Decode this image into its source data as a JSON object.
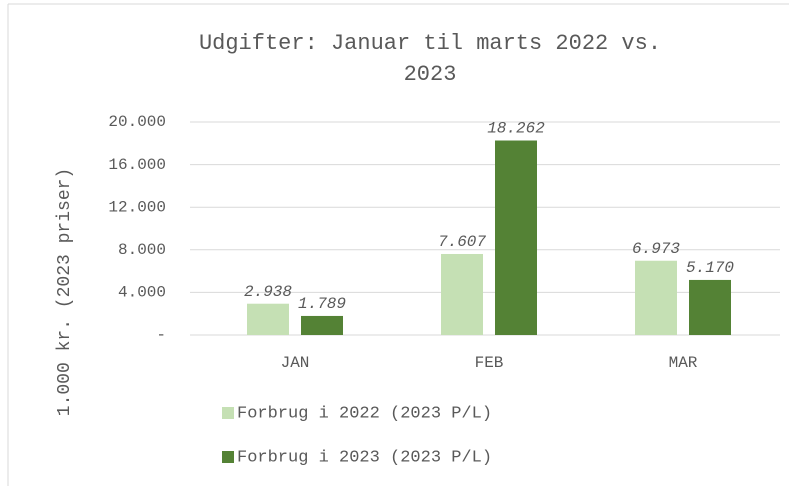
{
  "chart_data": {
    "type": "bar",
    "title": "Udgifter: Januar til marts 2022 vs. 2023",
    "y_label": "1.000 kr. (2023 priser)",
    "categories": [
      "JAN",
      "FEB",
      "MAR"
    ],
    "series": [
      {
        "name": "Forbrug i 2022 (2023 P/L)",
        "color": "#c5e0b4",
        "values": [
          2938,
          7607,
          6973
        ],
        "value_labels": [
          "2.938",
          "7.607",
          "6.973"
        ]
      },
      {
        "name": "Forbrug i 2023 (2023 P/L)",
        "color": "#548235",
        "values": [
          1789,
          18262,
          5170
        ],
        "value_labels": [
          "1.789",
          "18.262",
          "5.170"
        ]
      }
    ],
    "ylim": [
      0,
      20000
    ],
    "yticks": [
      {
        "value": 0,
        "label": "-"
      },
      {
        "value": 4000,
        "label": "4.000"
      },
      {
        "value": 8000,
        "label": "8.000"
      },
      {
        "value": 12000,
        "label": "12.000"
      },
      {
        "value": 16000,
        "label": "16.000"
      },
      {
        "value": 20000,
        "label": "20.000"
      }
    ],
    "grid": true,
    "legend": "bottom"
  }
}
